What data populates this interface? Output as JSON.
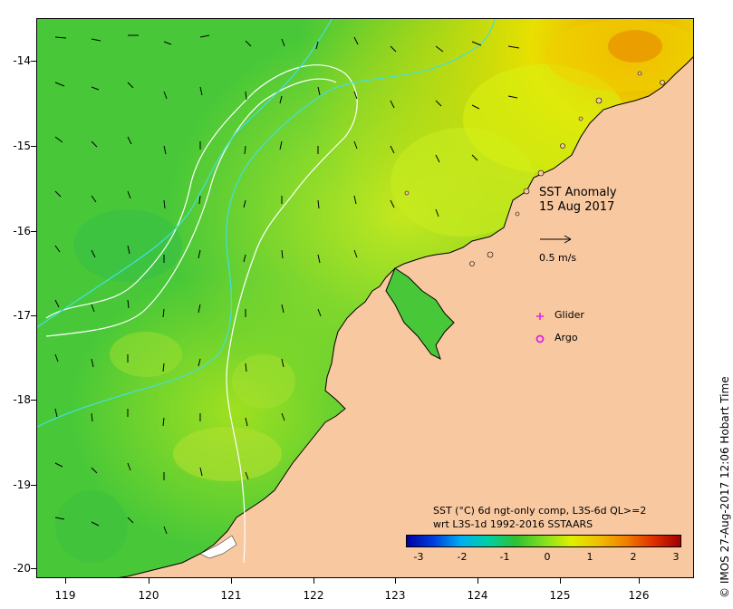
{
  "map": {
    "title_line1": "SST Anomaly",
    "title_line2": "15 Aug 2017",
    "vector_scale_label": "0.5 m/s",
    "legend": [
      {
        "label": "Glider",
        "color": "#e020e0",
        "symbol": "plus"
      },
      {
        "label": "Argo",
        "color": "#e020e0",
        "symbol": "circle"
      }
    ],
    "colorbar": {
      "title_line1": "SST (°C) 6d ngt-only comp, L3S-6d QL>=2",
      "title_line2": "wrt L3S-1d 1992-2016 SSTAARS",
      "ticks": [
        "-3",
        "-2",
        "-1",
        "0",
        "1",
        "2",
        "3"
      ],
      "colors": [
        "#0000a0",
        "#0040e0",
        "#00b0f0",
        "#00d0a0",
        "#30c030",
        "#80e020",
        "#e0f000",
        "#f0c000",
        "#f08000",
        "#e03000",
        "#a00000"
      ]
    },
    "y_ticks": [
      "-14",
      "-15",
      "-16",
      "-17",
      "-18",
      "-19",
      "-20"
    ],
    "x_ticks": [
      "119",
      "120",
      "121",
      "122",
      "123",
      "124",
      "125",
      "126"
    ],
    "credit": "© IMOS 27-Aug-2017 12:06 Hobart Time",
    "land_color": "#f8c8a0",
    "ocean_color": "#50d030"
  }
}
